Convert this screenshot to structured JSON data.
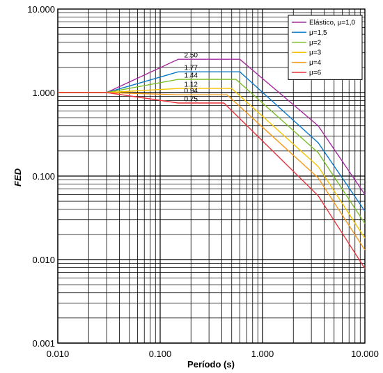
{
  "chart_data": {
    "type": "line",
    "xlabel": "Período (s)",
    "ylabel": "FED",
    "x_scale": "log",
    "y_scale": "log",
    "xlim": [
      0.01,
      10
    ],
    "ylim": [
      0.001,
      10
    ],
    "x_ticks": [
      "0.010",
      "0.100",
      "1.000",
      "10.000"
    ],
    "y_ticks": [
      "0.001",
      "0.010",
      "0.100",
      "1.000",
      "10.000"
    ],
    "grid": true,
    "legend_position": "top-right",
    "series": [
      {
        "name": "Elástico, μ=1,0",
        "color": "#a52aa0",
        "x": [
          0.01,
          0.03,
          0.15,
          0.6,
          3.5,
          10
        ],
        "y": [
          1.0,
          1.0,
          2.5,
          2.5,
          0.4,
          0.06
        ]
      },
      {
        "name": "μ=1,5",
        "color": "#0a78c8",
        "x": [
          0.01,
          0.03,
          0.15,
          0.6,
          3.5,
          10
        ],
        "y": [
          1.0,
          1.0,
          1.77,
          1.77,
          0.25,
          0.038
        ]
      },
      {
        "name": "μ=2",
        "color": "#7cbf2a",
        "x": [
          0.01,
          0.03,
          0.15,
          0.55,
          3.5,
          10
        ],
        "y": [
          1.0,
          1.0,
          1.44,
          1.44,
          0.19,
          0.027
        ]
      },
      {
        "name": "μ=3",
        "color": "#f5c400",
        "x": [
          0.01,
          0.03,
          0.15,
          0.5,
          3.5,
          10
        ],
        "y": [
          1.0,
          1.0,
          1.12,
          1.12,
          0.13,
          0.018
        ]
      },
      {
        "name": "μ=4",
        "color": "#f59a1a",
        "x": [
          0.01,
          0.03,
          0.15,
          0.45,
          3.5,
          10
        ],
        "y": [
          1.0,
          1.0,
          0.94,
          0.94,
          0.095,
          0.013
        ]
      },
      {
        "name": "μ=6",
        "color": "#e8343a",
        "x": [
          0.01,
          0.03,
          0.15,
          0.42,
          3.5,
          10
        ],
        "y": [
          1.0,
          1.0,
          0.75,
          0.75,
          0.058,
          0.0078
        ]
      }
    ],
    "annotations": [
      "2.50",
      "1.77",
      "1.44",
      "1.12",
      "0.94",
      "0.75"
    ]
  }
}
